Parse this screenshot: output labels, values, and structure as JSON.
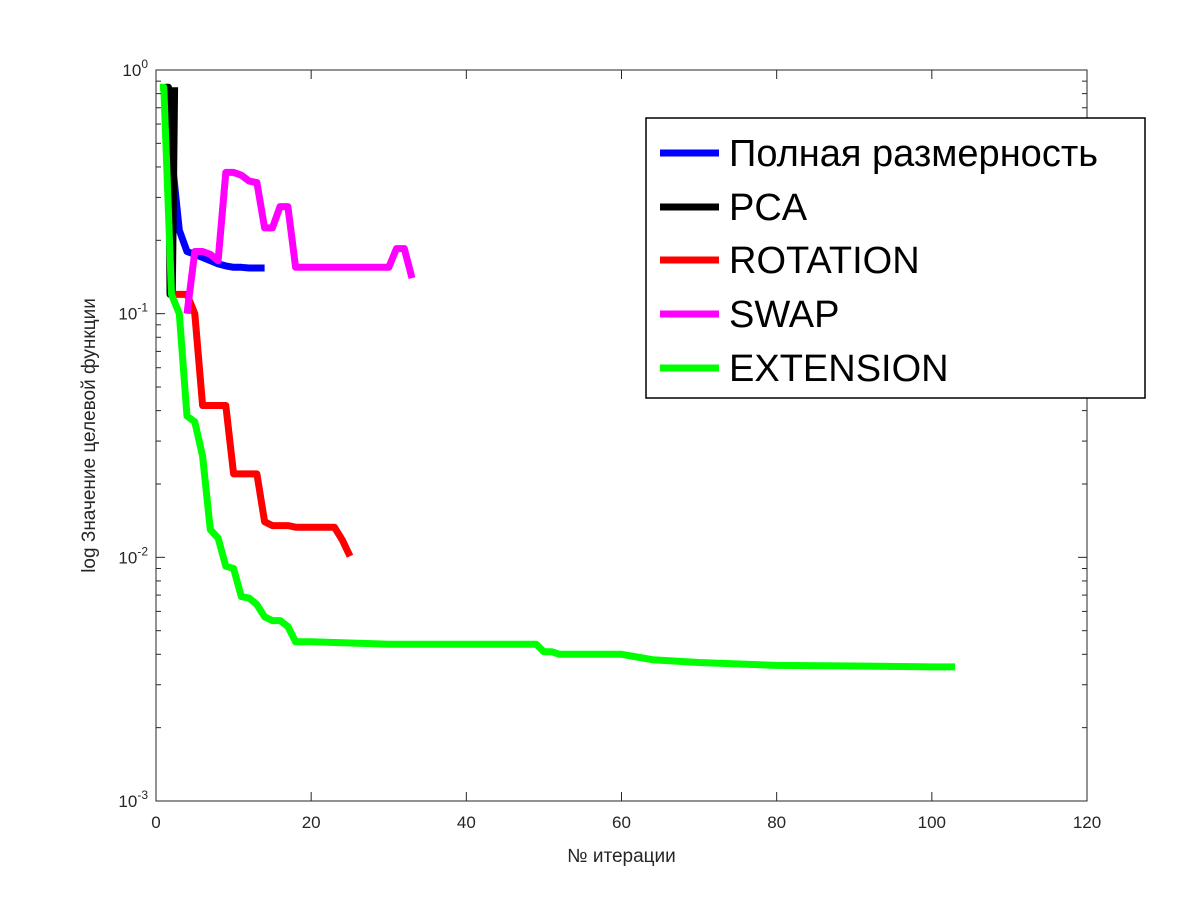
{
  "chart_data": {
    "type": "line",
    "title": "",
    "xlabel": "№ итерации",
    "ylabel": "log Значение целевой функции",
    "xlim": [
      0,
      120
    ],
    "ylim": [
      0.001,
      1
    ],
    "yscale": "log",
    "grid": false,
    "legend_position": "top-right",
    "x_ticks": [
      {
        "value": 0,
        "label": "0"
      },
      {
        "value": 20,
        "label": "20"
      },
      {
        "value": 40,
        "label": "40"
      },
      {
        "value": 60,
        "label": "60"
      },
      {
        "value": 80,
        "label": "80"
      },
      {
        "value": 100,
        "label": "100"
      },
      {
        "value": 120,
        "label": "120"
      }
    ],
    "y_ticks": [
      {
        "value": 0.001,
        "base": "10",
        "exp": "-3"
      },
      {
        "value": 0.01,
        "base": "10",
        "exp": "-2"
      },
      {
        "value": 0.1,
        "base": "10",
        "exp": "-1"
      },
      {
        "value": 1,
        "base": "10",
        "exp": "0"
      }
    ],
    "series": [
      {
        "name": "Полная размерность",
        "color": "#0000ff",
        "points": [
          [
            1,
            0.85
          ],
          [
            2,
            0.45
          ],
          [
            3,
            0.22
          ],
          [
            4,
            0.18
          ],
          [
            5,
            0.175
          ],
          [
            6,
            0.17
          ],
          [
            7,
            0.165
          ],
          [
            8,
            0.16
          ],
          [
            9,
            0.157
          ],
          [
            10,
            0.155
          ],
          [
            11,
            0.155
          ],
          [
            12,
            0.154
          ],
          [
            13,
            0.154
          ],
          [
            14,
            0.154
          ]
        ]
      },
      {
        "name": "PCA",
        "color": "#000000",
        "points": [
          [
            1.2,
            0.85
          ],
          [
            1.6,
            0.85
          ],
          [
            1.8,
            0.12
          ],
          [
            2.1,
            0.12
          ],
          [
            2.4,
            0.85
          ]
        ]
      },
      {
        "name": "ROTATION",
        "color": "#ff0000",
        "points": [
          [
            2,
            0.12
          ],
          [
            4,
            0.12
          ],
          [
            5,
            0.1
          ],
          [
            6,
            0.042
          ],
          [
            7,
            0.042
          ],
          [
            8,
            0.042
          ],
          [
            9,
            0.042
          ],
          [
            10,
            0.022
          ],
          [
            11,
            0.022
          ],
          [
            12,
            0.022
          ],
          [
            13,
            0.022
          ],
          [
            14,
            0.014
          ],
          [
            15,
            0.0135
          ],
          [
            16,
            0.0135
          ],
          [
            17,
            0.0135
          ],
          [
            18,
            0.0133
          ],
          [
            20,
            0.0133
          ],
          [
            22,
            0.0133
          ],
          [
            23,
            0.0133
          ],
          [
            24,
            0.0118
          ],
          [
            25,
            0.0101
          ]
        ]
      },
      {
        "name": "SWAP",
        "color": "#ff00ff",
        "points": [
          [
            4,
            0.1
          ],
          [
            5,
            0.18
          ],
          [
            6,
            0.18
          ],
          [
            7,
            0.175
          ],
          [
            8,
            0.165
          ],
          [
            9,
            0.38
          ],
          [
            10,
            0.38
          ],
          [
            11,
            0.37
          ],
          [
            12,
            0.35
          ],
          [
            13,
            0.345
          ],
          [
            14,
            0.225
          ],
          [
            15,
            0.225
          ],
          [
            16,
            0.275
          ],
          [
            17,
            0.275
          ],
          [
            18,
            0.155
          ],
          [
            20,
            0.155
          ],
          [
            25,
            0.155
          ],
          [
            30,
            0.155
          ],
          [
            31,
            0.185
          ],
          [
            32,
            0.185
          ],
          [
            33,
            0.14
          ]
        ]
      },
      {
        "name": "EXTENSION",
        "color": "#00ff00",
        "points": [
          [
            0.5,
            0.85
          ],
          [
            1,
            0.85
          ],
          [
            2,
            0.12
          ],
          [
            3,
            0.1
          ],
          [
            4,
            0.038
          ],
          [
            5,
            0.036
          ],
          [
            6,
            0.026
          ],
          [
            7,
            0.013
          ],
          [
            8,
            0.012
          ],
          [
            9,
            0.0092
          ],
          [
            10,
            0.009
          ],
          [
            11,
            0.0069
          ],
          [
            12,
            0.0068
          ],
          [
            13,
            0.0064
          ],
          [
            14,
            0.0057
          ],
          [
            15,
            0.0055
          ],
          [
            16,
            0.0055
          ],
          [
            17,
            0.0052
          ],
          [
            18,
            0.0045
          ],
          [
            20,
            0.0045
          ],
          [
            30,
            0.0044
          ],
          [
            40,
            0.0044
          ],
          [
            49,
            0.0044
          ],
          [
            50,
            0.0041
          ],
          [
            51,
            0.0041
          ],
          [
            52,
            0.004
          ],
          [
            60,
            0.004
          ],
          [
            62,
            0.0039
          ],
          [
            64,
            0.0038
          ],
          [
            70,
            0.0037
          ],
          [
            80,
            0.0036
          ],
          [
            90,
            0.00358
          ],
          [
            100,
            0.00355
          ],
          [
            103,
            0.00355
          ]
        ]
      }
    ]
  }
}
